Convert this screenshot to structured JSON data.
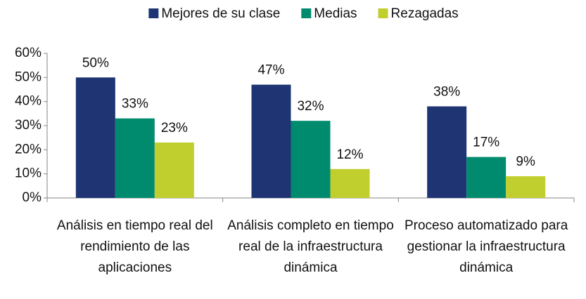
{
  "chart_data": {
    "type": "bar",
    "categories": [
      "Análisis en tiempo real del rendimiento de las aplicaciones",
      "Análisis completo en tiempo real de la infraestructura dinámica",
      "Proceso automatizado para gestionar la infraestructura dinámica"
    ],
    "series": [
      {
        "name": "Mejores de su clase",
        "color": "#1f3473",
        "values": [
          50,
          47,
          38
        ],
        "value_labels": [
          "50%",
          "47%",
          "38%"
        ]
      },
      {
        "name": "Medias",
        "color": "#008b6e",
        "values": [
          33,
          32,
          17
        ],
        "value_labels": [
          "33%",
          "32%",
          "17%"
        ]
      },
      {
        "name": "Rezagadas",
        "color": "#c0cf2e",
        "values": [
          23,
          12,
          9
        ],
        "value_labels": [
          "23%",
          "12%",
          "9%"
        ]
      }
    ],
    "ylim": [
      0,
      60
    ],
    "yticks": [
      {
        "value": 0,
        "label": "0%"
      },
      {
        "value": 10,
        "label": "10%"
      },
      {
        "value": 20,
        "label": "20%"
      },
      {
        "value": 30,
        "label": "30%"
      },
      {
        "value": 40,
        "label": "40%"
      },
      {
        "value": 50,
        "label": "50%"
      },
      {
        "value": 60,
        "label": "60%"
      }
    ],
    "legend": "top",
    "grid": false
  }
}
